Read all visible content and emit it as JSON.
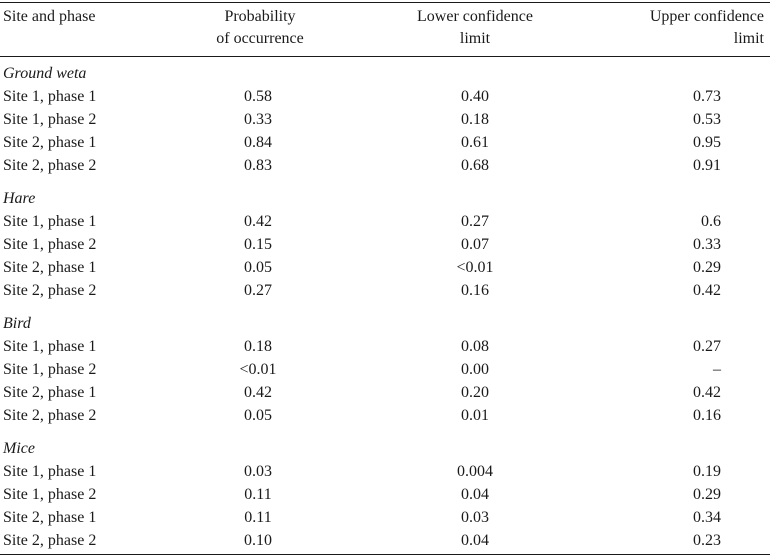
{
  "header": {
    "col_site": "Site and phase",
    "col_prob": [
      "Probability",
      "of occurrence"
    ],
    "col_lower": [
      "Lower confidence",
      "limit"
    ],
    "col_upper": [
      "Upper confidence",
      "limit"
    ]
  },
  "groups": [
    {
      "label": "Ground weta",
      "rows": [
        {
          "site": "Site 1, phase 1",
          "prob": "0.58",
          "lower": "0.40",
          "upper": "0.73"
        },
        {
          "site": "Site 1, phase 2",
          "prob": "0.33",
          "lower": "0.18",
          "upper": "0.53"
        },
        {
          "site": "Site 2, phase 1",
          "prob": "0.84",
          "lower": "0.61",
          "upper": "0.95"
        },
        {
          "site": "Site 2, phase 2",
          "prob": "0.83",
          "lower": "0.68",
          "upper": "0.91"
        }
      ]
    },
    {
      "label": "Hare",
      "rows": [
        {
          "site": "Site 1, phase 1",
          "prob": "0.42",
          "lower": "0.27",
          "upper": "0.6"
        },
        {
          "site": "Site 1, phase 2",
          "prob": "0.15",
          "lower": "0.07",
          "upper": "0.33"
        },
        {
          "site": "Site 2, phase 1",
          "prob": "0.05",
          "lower": "<0.01",
          "upper": "0.29"
        },
        {
          "site": "Site 2, phase 2",
          "prob": "0.27",
          "lower": "0.16",
          "upper": "0.42"
        }
      ]
    },
    {
      "label": "Bird",
      "rows": [
        {
          "site": "Site 1, phase 1",
          "prob": "0.18",
          "lower": "0.08",
          "upper": "0.27"
        },
        {
          "site": "Site 1, phase 2",
          "prob": "<0.01",
          "lower": "0.00",
          "upper": "–"
        },
        {
          "site": "Site 2, phase 1",
          "prob": "0.42",
          "lower": "0.20",
          "upper": "0.42"
        },
        {
          "site": "Site 2, phase 2",
          "prob": "0.05",
          "lower": "0.01",
          "upper": "0.16"
        }
      ]
    },
    {
      "label": "Mice",
      "rows": [
        {
          "site": "Site 1, phase 1",
          "prob": "0.03",
          "lower": "0.004",
          "upper": "0.19"
        },
        {
          "site": "Site 1, phase 2",
          "prob": "0.11",
          "lower": "0.04",
          "upper": "0.29"
        },
        {
          "site": "Site 2, phase 1",
          "prob": "0.11",
          "lower": "0.03",
          "upper": "0.34"
        },
        {
          "site": "Site 2, phase 2",
          "prob": "0.10",
          "lower": "0.04",
          "upper": "0.23"
        }
      ]
    }
  ]
}
